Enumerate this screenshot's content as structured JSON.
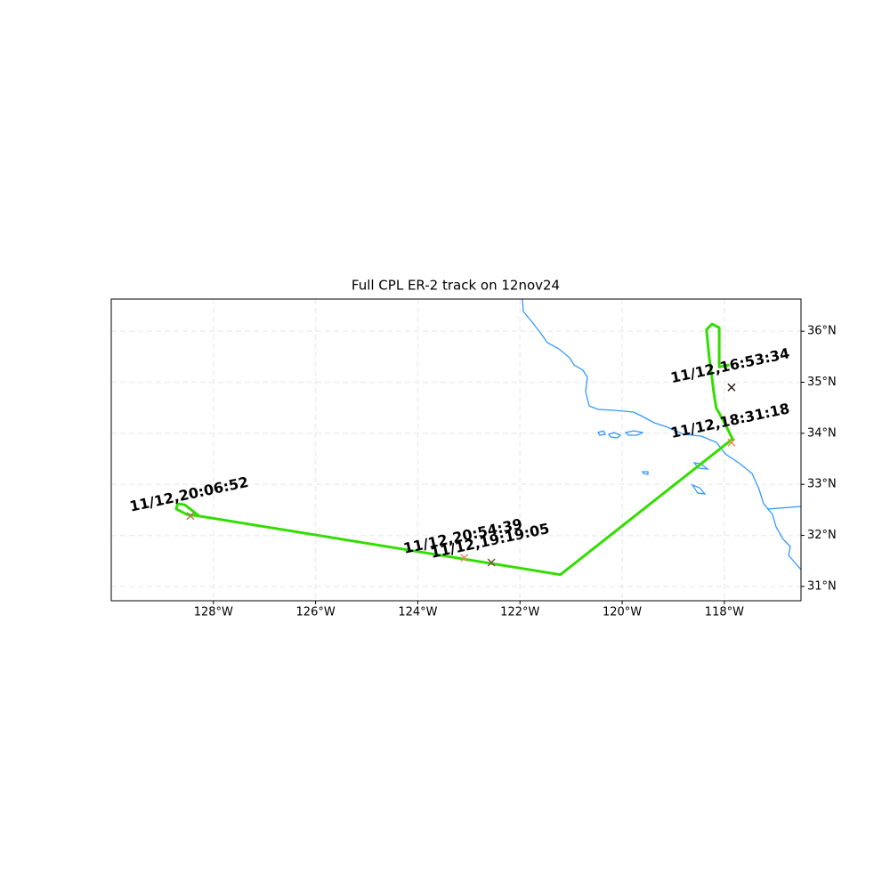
{
  "chart_data": {
    "type": "map",
    "title": "Full CPL ER-2 track on 12nov24",
    "xlim": [
      -130,
      -116.5
    ],
    "ylim": [
      30.72,
      36.63
    ],
    "xticks": [
      {
        "value": -128,
        "label": "128°W"
      },
      {
        "value": -126,
        "label": "126°W"
      },
      {
        "value": -124,
        "label": "124°W"
      },
      {
        "value": -122,
        "label": "122°W"
      },
      {
        "value": -120,
        "label": "120°W"
      },
      {
        "value": -118,
        "label": "118°W"
      }
    ],
    "yticks": [
      {
        "value": 31,
        "label": "31°N"
      },
      {
        "value": 32,
        "label": "32°N"
      },
      {
        "value": 33,
        "label": "33°N"
      },
      {
        "value": 34,
        "label": "34°N"
      },
      {
        "value": 35,
        "label": "35°N"
      },
      {
        "value": 36,
        "label": "36°N"
      }
    ],
    "grid": true,
    "track": {
      "color": "#33dd00",
      "x": [
        -117.9,
        -118.1,
        -118.1,
        -118.24,
        -118.35,
        -118.3,
        -118.24,
        -118.21,
        -118.16,
        -118.0,
        -117.84,
        -121.21,
        -128.28,
        -128.52,
        -128.73,
        -128.7,
        -128.56,
        -128.28
      ],
      "y": [
        35.34,
        35.3,
        36.07,
        36.14,
        36.03,
        35.51,
        35.08,
        34.82,
        34.5,
        34.21,
        33.89,
        31.23,
        32.38,
        32.41,
        32.52,
        32.62,
        32.6,
        32.38
      ]
    },
    "annotations": [
      {
        "text": "11/12,16:53:34",
        "lon": -117.86,
        "lat": 34.9,
        "color": "#2a1a10"
      },
      {
        "text": "11/12,18:31:18",
        "lon": -117.86,
        "lat": 33.82,
        "color": "#e8935a"
      },
      {
        "text": "11/12,19:19:05",
        "lon": -122.56,
        "lat": 31.47,
        "color": "#7a5040"
      },
      {
        "text": "11/12,20:54:39",
        "lon": -123.09,
        "lat": 31.56,
        "color": "#e0905a"
      },
      {
        "text": "11/12,20:06:52",
        "lon": -128.45,
        "lat": 32.38,
        "color": "#b07850"
      }
    ]
  }
}
